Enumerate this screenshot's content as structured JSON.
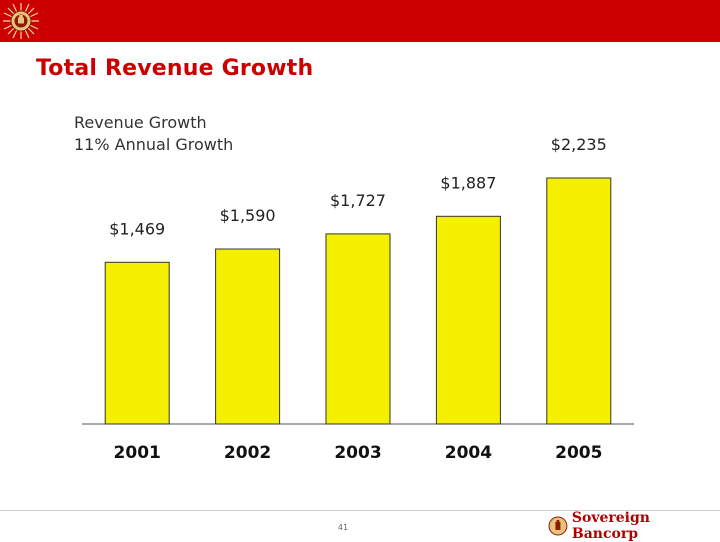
{
  "header": {
    "title": "Total Revenue Growth",
    "subtitle_lines": [
      "Revenue Growth",
      "11% Annual Growth"
    ]
  },
  "footer": {
    "page_number": "41",
    "company_name": "Sovereign Bancorp"
  },
  "colors": {
    "topbar": "#cc0000",
    "title": "#cc0000",
    "bar_fill": "#f5f000",
    "bar_stroke": "#333333"
  },
  "chart_data": {
    "type": "bar",
    "categories": [
      "2001",
      "2002",
      "2003",
      "2004",
      "2005"
    ],
    "values": [
      1469,
      1590,
      1727,
      1887,
      2235
    ],
    "value_labels": [
      "$1,469",
      "$1,590",
      "$1,727",
      "$1,887",
      "$2,235"
    ],
    "ylim": [
      0,
      2235
    ],
    "grid": false,
    "legend": "none"
  }
}
